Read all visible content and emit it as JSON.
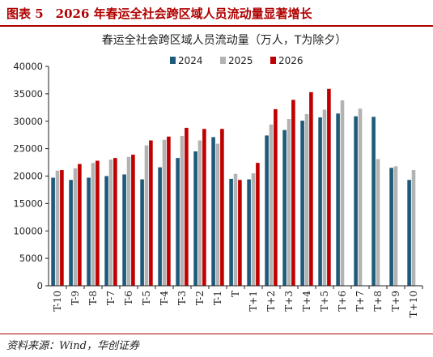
{
  "figure": {
    "title": "图表 5　2026 年春运全社会跨区域人员流动量显著增长",
    "source": "资料来源：Wind，华创证券"
  },
  "colors": {
    "header_rule": "#b00000",
    "series_2024": "#1f5a7a",
    "series_2025": "#b3b3b3",
    "series_2026": "#c00000"
  },
  "chart_data": {
    "type": "bar",
    "title": "春运全社会跨区域人员流动量（万人，T为除夕）",
    "xlabel": "",
    "ylabel": "",
    "ylim": [
      0,
      40000
    ],
    "yticks": [
      0,
      5000,
      10000,
      15000,
      20000,
      25000,
      30000,
      35000,
      40000
    ],
    "grid": false,
    "legend_position": "top",
    "categories": [
      "T-10",
      "T-9",
      "T-8",
      "T-7",
      "T-6",
      "T-5",
      "T-4",
      "T-3",
      "T-2",
      "T-1",
      "T",
      "T+1",
      "T+2",
      "T+3",
      "T+4",
      "T+5",
      "T+6",
      "T+7",
      "T+8",
      "T+9",
      "T+10"
    ],
    "series": [
      {
        "name": "2024",
        "color": "#1f5a7a",
        "values": [
          19700,
          19300,
          19700,
          20000,
          20300,
          19400,
          21600,
          23300,
          24500,
          27100,
          19500,
          19400,
          27400,
          28400,
          30100,
          30700,
          31400,
          30900,
          30800,
          21500,
          19300
        ]
      },
      {
        "name": "2025",
        "color": "#b3b3b3",
        "values": [
          21000,
          21400,
          22400,
          23000,
          23500,
          25600,
          26600,
          27300,
          26500,
          25900,
          20400,
          20500,
          29400,
          30400,
          31300,
          32100,
          33800,
          32300,
          23100,
          21800,
          21100
        ]
      },
      {
        "name": "2026",
        "color": "#c00000",
        "values": [
          21100,
          22200,
          22800,
          23300,
          23900,
          26500,
          27200,
          28800,
          28600,
          28600,
          19300,
          22400,
          32200,
          33900,
          35300,
          35900,
          null,
          null,
          null,
          null,
          null
        ]
      }
    ]
  }
}
